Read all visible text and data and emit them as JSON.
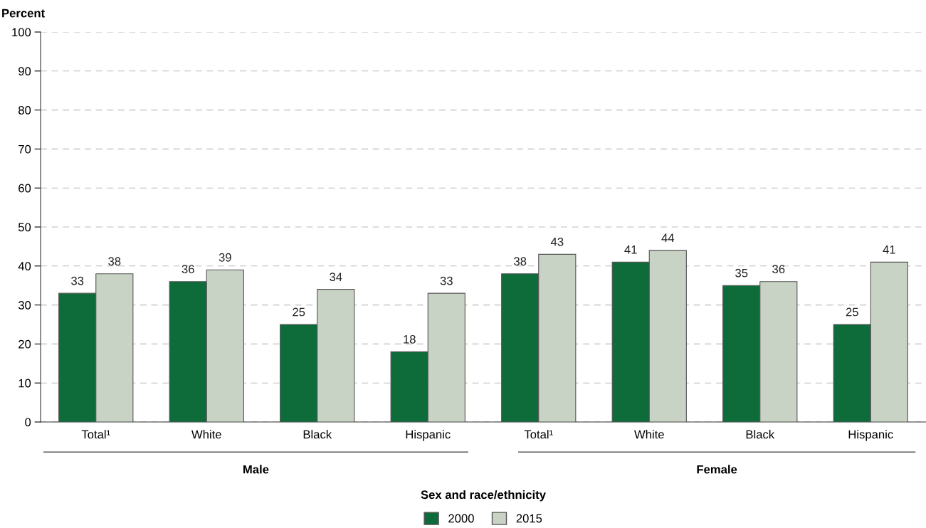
{
  "chart_data": {
    "type": "bar",
    "ylabel": "Percent",
    "xlabel": "Sex and race/ethnicity",
    "categories": [
      "Total¹",
      "White",
      "Black",
      "Hispanic",
      "Total¹",
      "White",
      "Black",
      "Hispanic"
    ],
    "series": [
      {
        "name": "2000",
        "color": "#0e6b3a",
        "values": [
          33,
          36,
          25,
          18,
          38,
          41,
          35,
          25
        ]
      },
      {
        "name": "2015",
        "color": "#c8d3c5",
        "values": [
          38,
          39,
          34,
          33,
          43,
          44,
          36,
          41
        ]
      }
    ],
    "annotations": [
      "Male",
      "Female"
    ],
    "ylim": [
      0,
      100
    ],
    "yticks": [
      0,
      10,
      20,
      30,
      40,
      50,
      60,
      70,
      80,
      90,
      100
    ],
    "grid": "y",
    "legend": "bottom",
    "data_labels": true
  }
}
